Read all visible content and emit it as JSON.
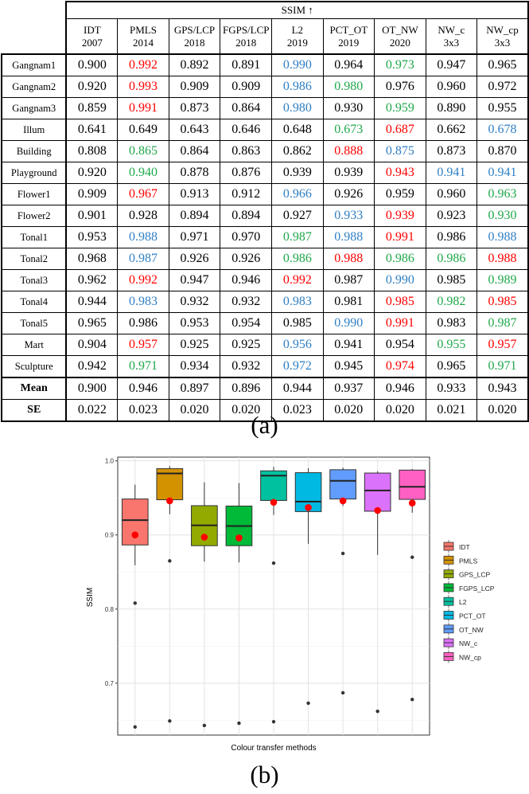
{
  "table": {
    "group_header": "SSIM ↑",
    "columns": [
      {
        "name": "IDT",
        "year": "2007"
      },
      {
        "name": "PMLS",
        "year": "2014"
      },
      {
        "name": "GPS/LCP",
        "year": "2018"
      },
      {
        "name": "FGPS/LCP",
        "year": "2018"
      },
      {
        "name": "L2",
        "year": "2019"
      },
      {
        "name": "PCT_OT",
        "year": "2019"
      },
      {
        "name": "OT_NW",
        "year": "2020"
      },
      {
        "name": "NW_c",
        "year": "3x3"
      },
      {
        "name": "NW_cp",
        "year": "3x3"
      }
    ],
    "rows": [
      {
        "label": "Gangnam1",
        "values": [
          "0.900",
          "0.992",
          "0.892",
          "0.891",
          "0.990",
          "0.964",
          "0.973",
          "0.947",
          "0.965"
        ],
        "colors": [
          "black",
          "red",
          "black",
          "black",
          "blue",
          "black",
          "green",
          "black",
          "black"
        ]
      },
      {
        "label": "Gangnam2",
        "values": [
          "0.920",
          "0.993",
          "0.909",
          "0.909",
          "0.986",
          "0.980",
          "0.976",
          "0.960",
          "0.972"
        ],
        "colors": [
          "black",
          "red",
          "black",
          "black",
          "blue",
          "green",
          "black",
          "black",
          "black"
        ]
      },
      {
        "label": "Gangnam3",
        "values": [
          "0.859",
          "0.991",
          "0.873",
          "0.864",
          "0.980",
          "0.930",
          "0.959",
          "0.890",
          "0.955"
        ],
        "colors": [
          "black",
          "red",
          "black",
          "black",
          "blue",
          "black",
          "green",
          "black",
          "black"
        ]
      },
      {
        "label": "Illum",
        "values": [
          "0.641",
          "0.649",
          "0.643",
          "0.646",
          "0.648",
          "0.673",
          "0.687",
          "0.662",
          "0.678"
        ],
        "colors": [
          "black",
          "black",
          "black",
          "black",
          "black",
          "green",
          "red",
          "black",
          "blue"
        ]
      },
      {
        "label": "Building",
        "values": [
          "0.808",
          "0.865",
          "0.864",
          "0.863",
          "0.862",
          "0.888",
          "0.875",
          "0.873",
          "0.870"
        ],
        "colors": [
          "black",
          "green",
          "black",
          "black",
          "black",
          "red",
          "blue",
          "black",
          "black"
        ]
      },
      {
        "label": "Playground",
        "values": [
          "0.920",
          "0.940",
          "0.878",
          "0.876",
          "0.939",
          "0.939",
          "0.943",
          "0.941",
          "0.941"
        ],
        "colors": [
          "black",
          "green",
          "black",
          "black",
          "black",
          "black",
          "red",
          "blue",
          "blue"
        ]
      },
      {
        "label": "Flower1",
        "values": [
          "0.909",
          "0.967",
          "0.913",
          "0.912",
          "0.966",
          "0.926",
          "0.959",
          "0.960",
          "0.963"
        ],
        "colors": [
          "black",
          "red",
          "black",
          "black",
          "blue",
          "black",
          "black",
          "black",
          "green"
        ]
      },
      {
        "label": "Flower2",
        "values": [
          "0.901",
          "0.928",
          "0.894",
          "0.894",
          "0.927",
          "0.933",
          "0.939",
          "0.923",
          "0.930"
        ],
        "colors": [
          "black",
          "black",
          "black",
          "black",
          "black",
          "blue",
          "red",
          "black",
          "green"
        ]
      },
      {
        "label": "Tonal1",
        "values": [
          "0.953",
          "0.988",
          "0.971",
          "0.970",
          "0.987",
          "0.988",
          "0.991",
          "0.986",
          "0.988"
        ],
        "colors": [
          "black",
          "blue",
          "black",
          "black",
          "green",
          "blue",
          "red",
          "black",
          "blue"
        ]
      },
      {
        "label": "Tonal2",
        "values": [
          "0.968",
          "0.987",
          "0.926",
          "0.926",
          "0.986",
          "0.988",
          "0.986",
          "0.986",
          "0.988"
        ],
        "colors": [
          "black",
          "blue",
          "black",
          "black",
          "green",
          "red",
          "green",
          "green",
          "red"
        ]
      },
      {
        "label": "Tonal3",
        "values": [
          "0.962",
          "0.992",
          "0.947",
          "0.946",
          "0.992",
          "0.987",
          "0.990",
          "0.985",
          "0.989"
        ],
        "colors": [
          "black",
          "red",
          "black",
          "black",
          "red",
          "black",
          "blue",
          "black",
          "green"
        ]
      },
      {
        "label": "Tonal4",
        "values": [
          "0.944",
          "0.983",
          "0.932",
          "0.932",
          "0.983",
          "0.981",
          "0.985",
          "0.982",
          "0.985"
        ],
        "colors": [
          "black",
          "blue",
          "black",
          "black",
          "blue",
          "black",
          "red",
          "green",
          "red"
        ]
      },
      {
        "label": "Tonal5",
        "values": [
          "0.965",
          "0.986",
          "0.953",
          "0.954",
          "0.985",
          "0.990",
          "0.991",
          "0.983",
          "0.987"
        ],
        "colors": [
          "black",
          "black",
          "black",
          "black",
          "black",
          "blue",
          "red",
          "black",
          "green"
        ]
      },
      {
        "label": "Mart",
        "values": [
          "0.904",
          "0.957",
          "0.925",
          "0.925",
          "0.956",
          "0.941",
          "0.954",
          "0.955",
          "0.957"
        ],
        "colors": [
          "black",
          "red",
          "black",
          "black",
          "blue",
          "black",
          "black",
          "green",
          "red"
        ]
      },
      {
        "label": "Sculpture",
        "values": [
          "0.942",
          "0.971",
          "0.934",
          "0.932",
          "0.972",
          "0.945",
          "0.974",
          "0.965",
          "0.971"
        ],
        "colors": [
          "black",
          "green",
          "black",
          "black",
          "blue",
          "black",
          "red",
          "black",
          "green"
        ]
      }
    ],
    "summary": [
      {
        "label": "Mean",
        "values": [
          "0.900",
          "0.946",
          "0.897",
          "0.896",
          "0.944",
          "0.937",
          "0.946",
          "0.933",
          "0.943"
        ]
      },
      {
        "label": "SE",
        "values": [
          "0.022",
          "0.023",
          "0.020",
          "0.020",
          "0.023",
          "0.020",
          "0.020",
          "0.021",
          "0.020"
        ]
      }
    ]
  },
  "captions": {
    "a": "(a)",
    "b": "(b)"
  },
  "colors": {
    "red": "#ff0000",
    "blue": "#2f7fc4",
    "green": "#1fa84a",
    "black": "#000000"
  },
  "chart_data": {
    "type": "box",
    "xlabel": "Colour transfer methods",
    "ylabel": "SSIM",
    "ylim": [
      0.63,
      1.005
    ],
    "yticks": [
      "0.7",
      "0.8",
      "0.9",
      "1.0"
    ],
    "grid": true,
    "legend_position": "right",
    "series": [
      {
        "name": "IDT",
        "color": "#f8766d",
        "q1": 0.8865,
        "median": 0.92,
        "q3": 0.9485,
        "whisker_low": 0.859,
        "whisker_high": 0.968,
        "mean": 0.9,
        "outliers": [
          0.808,
          0.641
        ]
      },
      {
        "name": "PMLS",
        "color": "#d39200",
        "q1": 0.9475,
        "median": 0.983,
        "q3": 0.9895,
        "whisker_low": 0.928,
        "whisker_high": 0.993,
        "mean": 0.946,
        "outliers": [
          0.865,
          0.649
        ]
      },
      {
        "name": "GPS_LCP",
        "color": "#93aa00",
        "q1": 0.8855,
        "median": 0.913,
        "q3": 0.9395,
        "whisker_low": 0.864,
        "whisker_high": 0.971,
        "mean": 0.897,
        "outliers": [
          0.643
        ]
      },
      {
        "name": "FGPS_LCP",
        "color": "#00ba38",
        "q1": 0.8855,
        "median": 0.912,
        "q3": 0.939,
        "whisker_low": 0.863,
        "whisker_high": 0.97,
        "mean": 0.896,
        "outliers": [
          0.646
        ]
      },
      {
        "name": "L2",
        "color": "#00c19f",
        "q1": 0.9465,
        "median": 0.98,
        "q3": 0.9865,
        "whisker_low": 0.927,
        "whisker_high": 0.992,
        "mean": 0.944,
        "outliers": [
          0.862,
          0.648
        ]
      },
      {
        "name": "PCT_OT",
        "color": "#00b9e3",
        "q1": 0.9315,
        "median": 0.945,
        "q3": 0.984,
        "whisker_low": 0.888,
        "whisker_high": 0.99,
        "mean": 0.937,
        "outliers": [
          0.673
        ]
      },
      {
        "name": "OT_NW",
        "color": "#619cff",
        "q1": 0.9485,
        "median": 0.973,
        "q3": 0.988,
        "whisker_low": 0.939,
        "whisker_high": 0.991,
        "mean": 0.946,
        "outliers": [
          0.875,
          0.687
        ]
      },
      {
        "name": "NW_c",
        "color": "#db72fb",
        "q1": 0.932,
        "median": 0.96,
        "q3": 0.9835,
        "whisker_low": 0.873,
        "whisker_high": 0.986,
        "mean": 0.933,
        "outliers": [
          0.662
        ]
      },
      {
        "name": "NW_cp",
        "color": "#ff61c3",
        "q1": 0.948,
        "median": 0.965,
        "q3": 0.9875,
        "whisker_low": 0.93,
        "whisker_high": 0.989,
        "mean": 0.943,
        "outliers": [
          0.87,
          0.678
        ]
      }
    ]
  }
}
